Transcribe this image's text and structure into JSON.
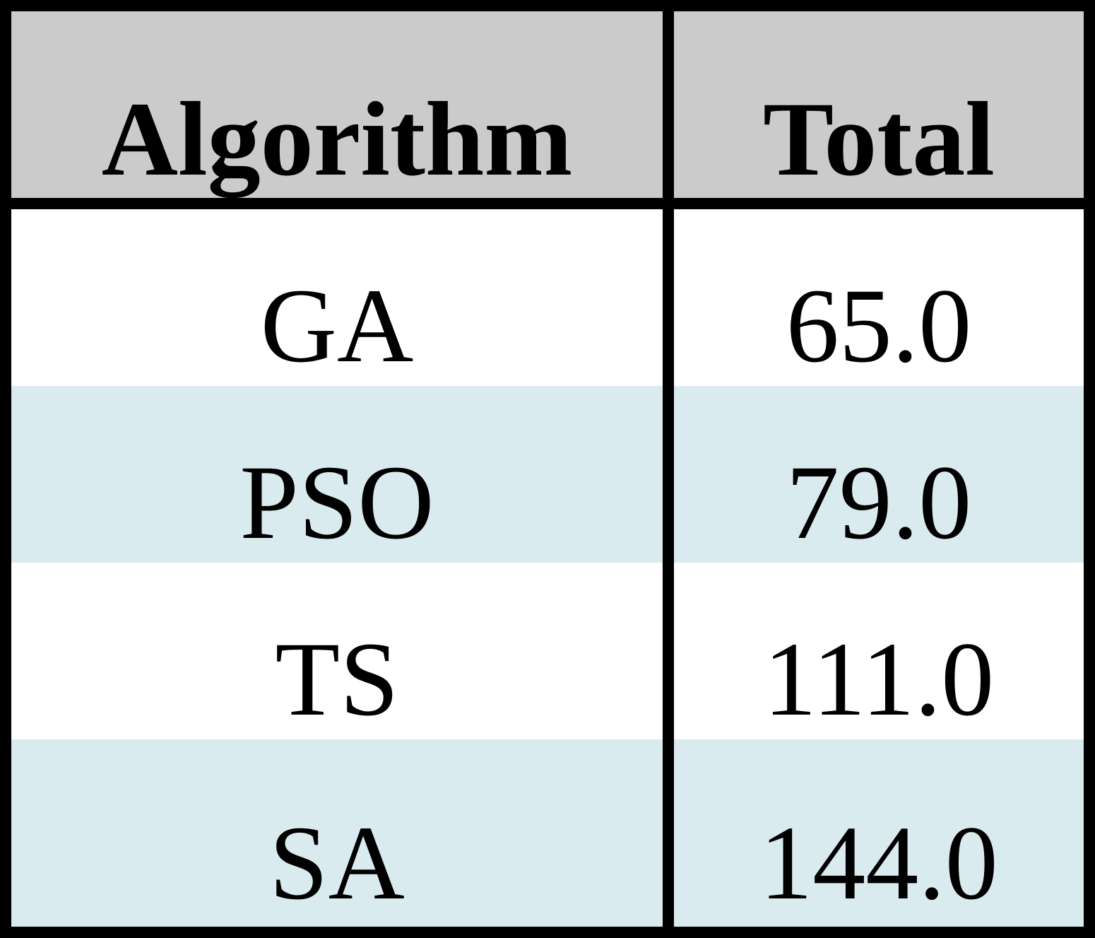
{
  "table": {
    "header": [
      "Algorithm",
      "Total"
    ],
    "rows": [
      [
        "GA",
        "65.0"
      ],
      [
        "PSO",
        "79.0"
      ],
      [
        "TS",
        "111.0"
      ],
      [
        "SA",
        "144.0"
      ]
    ]
  }
}
